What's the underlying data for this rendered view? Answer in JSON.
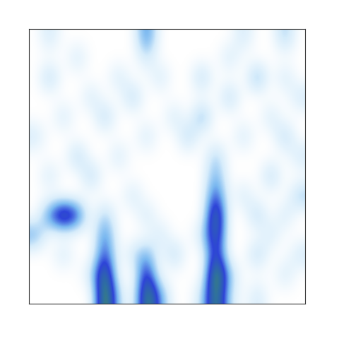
{
  "chart_data": {
    "type": "heatmap",
    "tick_labels": false,
    "cells": [
      [
        0,
        0,
        0,
        0,
        0,
        1.0,
        0.2,
        0,
        0.9,
        0.4,
        0,
        0,
        0.2,
        0.9,
        0.2,
        0,
        0.2,
        0,
        0,
        0
      ],
      [
        0,
        0,
        0,
        0,
        0.2,
        0.9,
        0,
        0,
        0.7,
        0,
        0,
        0,
        0,
        1.0,
        0.3,
        0,
        0,
        0,
        0.2,
        0
      ],
      [
        0,
        0,
        0.2,
        0,
        0,
        0.6,
        0,
        0.2,
        0.4,
        0,
        0.3,
        0,
        0,
        0.7,
        0,
        0,
        0.3,
        0,
        0,
        0.2
      ],
      [
        0.4,
        0,
        0,
        0,
        0,
        0.5,
        0,
        0,
        0,
        0.2,
        0,
        0,
        0.2,
        0.8,
        0,
        0,
        0,
        0.2,
        0,
        0
      ],
      [
        0,
        0.5,
        0.9,
        0.6,
        0,
        0.3,
        0,
        0,
        0.2,
        0,
        0,
        0,
        0,
        0.9,
        0,
        0,
        0.3,
        0,
        0.2,
        0
      ],
      [
        0,
        0,
        0,
        0,
        0,
        0,
        0,
        0.2,
        0,
        0,
        0,
        0,
        0,
        0.6,
        0,
        0.2,
        0,
        0,
        0,
        0.3
      ],
      [
        0,
        0.2,
        0,
        0,
        0.3,
        0,
        0,
        0,
        0,
        0,
        0,
        0,
        0,
        0.4,
        0,
        0,
        0,
        0.3,
        0,
        0
      ],
      [
        0,
        0,
        0,
        0.3,
        0,
        0,
        0.2,
        0,
        0,
        0,
        0,
        0,
        0,
        0.3,
        0,
        0,
        0,
        0,
        0,
        0.2
      ],
      [
        0.2,
        0,
        0,
        0,
        0,
        0,
        0,
        0,
        0.2,
        0,
        0,
        0.3,
        0,
        0,
        0,
        0.2,
        0,
        0,
        0.3,
        0
      ],
      [
        0,
        0,
        0.2,
        0,
        0,
        0.3,
        0,
        0,
        0,
        0,
        0.2,
        0,
        0.4,
        0,
        0,
        0,
        0,
        0.2,
        0,
        0
      ],
      [
        0,
        0,
        0,
        0,
        0.2,
        0,
        0,
        0.3,
        0,
        0,
        0,
        0,
        0,
        0,
        0.3,
        0,
        0,
        0,
        0,
        0.2
      ],
      [
        0,
        0.3,
        0,
        0,
        0,
        0,
        0.2,
        0,
        0,
        0.2,
        0,
        0,
        0.3,
        0,
        0,
        0,
        0.4,
        0,
        0.2,
        0
      ],
      [
        0,
        0,
        0,
        0.2,
        0,
        0,
        0,
        0,
        0.2,
        0,
        0,
        0,
        0,
        0,
        0.2,
        0,
        0,
        0,
        0,
        0
      ],
      [
        0,
        0.2,
        0,
        0,
        0,
        0,
        0,
        0,
        0.5,
        0,
        0,
        0,
        0,
        0,
        0,
        0.2,
        0,
        0,
        0.3,
        0
      ]
    ]
  }
}
